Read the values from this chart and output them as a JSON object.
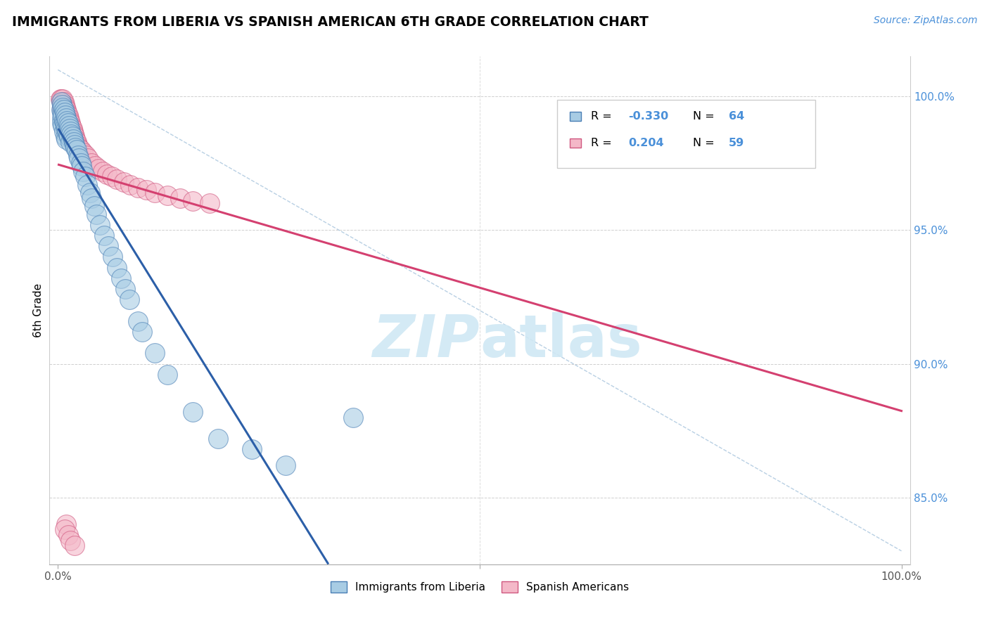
{
  "title": "IMMIGRANTS FROM LIBERIA VS SPANISH AMERICAN 6TH GRADE CORRELATION CHART",
  "source_text": "Source: ZipAtlas.com",
  "ylabel": "6th Grade",
  "legend_blue_r": "-0.330",
  "legend_blue_n": "64",
  "legend_pink_r": "0.204",
  "legend_pink_n": "59",
  "blue_color": "#a8cce4",
  "blue_edge_color": "#4a7fb5",
  "pink_color": "#f4b8c8",
  "pink_edge_color": "#d05880",
  "blue_line_color": "#2c5fa8",
  "pink_line_color": "#d44070",
  "dash_line_color": "#9bbcd8",
  "watermark_color": "#d0e8f4",
  "ytick_color": "#4a90d9",
  "xrange": [
    0.0,
    1.0
  ],
  "yrange": [
    0.825,
    1.015
  ],
  "ytick_values": [
    1.0,
    0.95,
    0.9,
    0.85
  ],
  "ytick_labels": [
    "100.0%",
    "95.0%",
    "90.0%",
    "85.0%"
  ],
  "blue_x": [
    0.004,
    0.004,
    0.005,
    0.005,
    0.005,
    0.005,
    0.006,
    0.006,
    0.006,
    0.007,
    0.007,
    0.007,
    0.008,
    0.008,
    0.009,
    0.009,
    0.009,
    0.01,
    0.01,
    0.01,
    0.011,
    0.011,
    0.012,
    0.012,
    0.013,
    0.013,
    0.014,
    0.015,
    0.015,
    0.016,
    0.017,
    0.018,
    0.019,
    0.02,
    0.021,
    0.022,
    0.024,
    0.025,
    0.027,
    0.028,
    0.03,
    0.032,
    0.035,
    0.038,
    0.04,
    0.043,
    0.046,
    0.05,
    0.055,
    0.06,
    0.065,
    0.07,
    0.075,
    0.08,
    0.085,
    0.095,
    0.1,
    0.115,
    0.13,
    0.16,
    0.19,
    0.23,
    0.27,
    0.35
  ],
  "blue_y": [
    0.998,
    0.995,
    0.997,
    0.994,
    0.992,
    0.99,
    0.996,
    0.993,
    0.989,
    0.995,
    0.991,
    0.987,
    0.994,
    0.99,
    0.993,
    0.989,
    0.985,
    0.992,
    0.988,
    0.984,
    0.991,
    0.987,
    0.99,
    0.986,
    0.989,
    0.985,
    0.988,
    0.987,
    0.983,
    0.986,
    0.985,
    0.984,
    0.983,
    0.982,
    0.981,
    0.98,
    0.978,
    0.977,
    0.975,
    0.974,
    0.972,
    0.97,
    0.967,
    0.964,
    0.962,
    0.959,
    0.956,
    0.952,
    0.948,
    0.944,
    0.94,
    0.936,
    0.932,
    0.928,
    0.924,
    0.916,
    0.912,
    0.904,
    0.896,
    0.882,
    0.872,
    0.868,
    0.862,
    0.88
  ],
  "pink_x": [
    0.003,
    0.004,
    0.005,
    0.005,
    0.005,
    0.006,
    0.006,
    0.006,
    0.007,
    0.007,
    0.007,
    0.008,
    0.008,
    0.009,
    0.009,
    0.01,
    0.01,
    0.01,
    0.011,
    0.011,
    0.012,
    0.012,
    0.013,
    0.014,
    0.015,
    0.016,
    0.017,
    0.018,
    0.019,
    0.02,
    0.021,
    0.022,
    0.023,
    0.025,
    0.027,
    0.03,
    0.033,
    0.036,
    0.04,
    0.044,
    0.048,
    0.053,
    0.058,
    0.064,
    0.07,
    0.078,
    0.086,
    0.095,
    0.105,
    0.115,
    0.13,
    0.145,
    0.16,
    0.18,
    0.01,
    0.008,
    0.012,
    0.015,
    0.02
  ],
  "pink_y": [
    0.999,
    0.999,
    0.998,
    0.997,
    0.996,
    0.999,
    0.997,
    0.995,
    0.998,
    0.996,
    0.994,
    0.997,
    0.995,
    0.996,
    0.994,
    0.995,
    0.993,
    0.991,
    0.994,
    0.992,
    0.993,
    0.991,
    0.992,
    0.991,
    0.99,
    0.989,
    0.988,
    0.987,
    0.986,
    0.985,
    0.984,
    0.983,
    0.982,
    0.981,
    0.98,
    0.979,
    0.978,
    0.977,
    0.975,
    0.974,
    0.973,
    0.972,
    0.971,
    0.97,
    0.969,
    0.968,
    0.967,
    0.966,
    0.965,
    0.964,
    0.963,
    0.962,
    0.961,
    0.96,
    0.84,
    0.838,
    0.836,
    0.834,
    0.832
  ]
}
